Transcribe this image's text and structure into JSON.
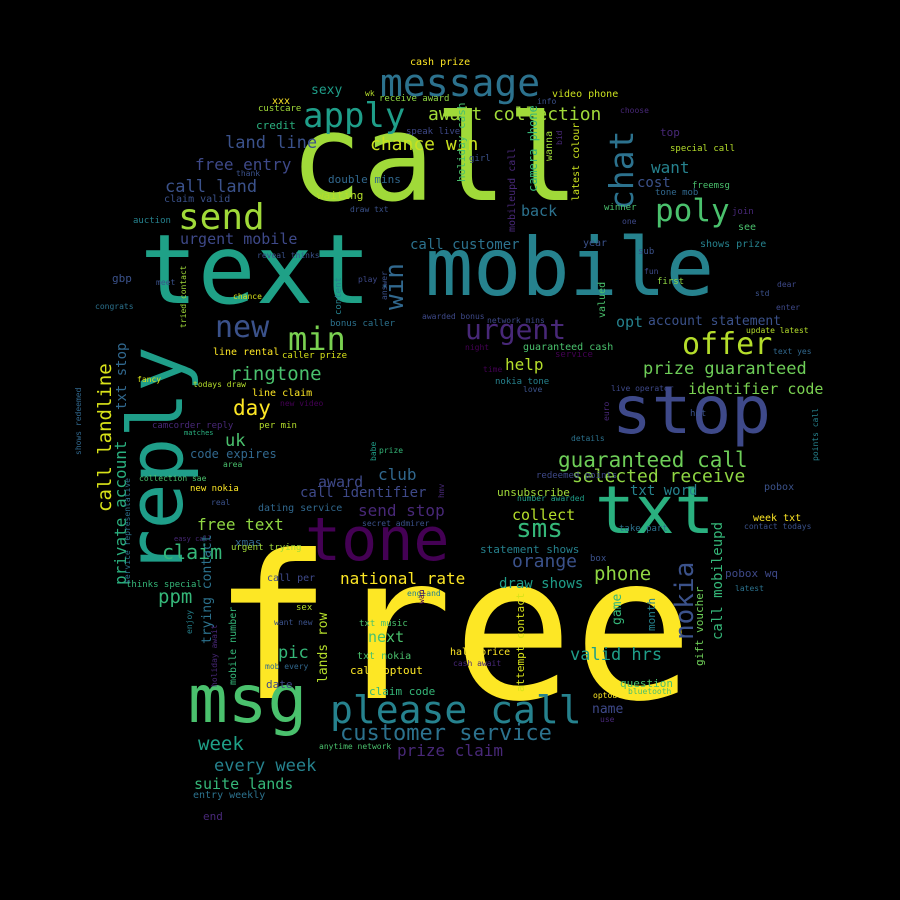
{
  "palette": {
    "background": "#000000",
    "yellow": "#fde725",
    "lime": "#b5de2b",
    "green": "#6ece58",
    "teal_green": "#35b779",
    "teal": "#1f9e89",
    "cyan_blue": "#26828e",
    "blue": "#31688e",
    "indigo": "#3e4989",
    "purple": "#482878",
    "dark_purple": "#440154"
  },
  "words": [
    {
      "text": "free",
      "color": "#fde725"
    },
    {
      "text": "call",
      "color": "#a0da39"
    },
    {
      "text": "text",
      "color": "#1fa187"
    },
    {
      "text": "mobile",
      "color": "#26828e"
    },
    {
      "text": "reply",
      "color": "#1f9e89"
    },
    {
      "text": "stop",
      "color": "#3e4989"
    },
    {
      "text": "txt",
      "color": "#2ab07f"
    },
    {
      "text": "tone",
      "color": "#440154"
    },
    {
      "text": "msg",
      "color": "#4ac16d"
    },
    {
      "text": "please call",
      "color": "#26828e"
    },
    {
      "text": "message",
      "color": "#2c728e"
    },
    {
      "text": "apply",
      "color": "#1f9e89"
    },
    {
      "text": "send",
      "color": "#a0da39"
    },
    {
      "text": "chat",
      "color": "#2c728e"
    },
    {
      "text": "poly",
      "color": "#4ac16d"
    },
    {
      "text": "new",
      "color": "#3b528b"
    },
    {
      "text": "min",
      "color": "#7ad151"
    },
    {
      "text": "win",
      "color": "#31688e"
    },
    {
      "text": "urgent",
      "color": "#482878"
    },
    {
      "text": "offer",
      "color": "#b5de2b"
    },
    {
      "text": "customer service",
      "color": "#2c728e"
    },
    {
      "text": "await collection",
      "color": "#a0da39"
    },
    {
      "text": "chance win",
      "color": "#cae11f"
    },
    {
      "text": "land line",
      "color": "#3b528b"
    },
    {
      "text": "free entry",
      "color": "#3e4989"
    },
    {
      "text": "call land",
      "color": "#3b528b"
    },
    {
      "text": "urgent mobile",
      "color": "#3e4989"
    },
    {
      "text": "ringtone",
      "color": "#4ac16d"
    },
    {
      "text": "day",
      "color": "#fde725"
    },
    {
      "text": "call landline",
      "color": "#d8e219"
    },
    {
      "text": "private account",
      "color": "#2ab07f"
    },
    {
      "text": "txt stop",
      "color": "#31688e"
    },
    {
      "text": "uk",
      "color": "#4ac16d"
    },
    {
      "text": "code expires",
      "color": "#31688e"
    },
    {
      "text": "guaranteed call",
      "color": "#6ece58"
    },
    {
      "text": "selected receive",
      "color": "#90d743"
    },
    {
      "text": "txt word",
      "color": "#26828e"
    },
    {
      "text": "prize guaranteed",
      "color": "#6ece58"
    },
    {
      "text": "identifier code",
      "color": "#7ad151"
    },
    {
      "text": "account statement",
      "color": "#3b528b"
    },
    {
      "text": "opt",
      "color": "#26828e"
    },
    {
      "text": "help",
      "color": "#b5de2b"
    },
    {
      "text": "call customer",
      "color": "#2c728e"
    },
    {
      "text": "award",
      "color": "#3e4989"
    },
    {
      "text": "club",
      "color": "#31688e"
    },
    {
      "text": "call identifier",
      "color": "#3e4989"
    },
    {
      "text": "send stop",
      "color": "#482878"
    },
    {
      "text": "sms",
      "color": "#35b779"
    },
    {
      "text": "collect",
      "color": "#b5de2b"
    },
    {
      "text": "orange",
      "color": "#3b528b"
    },
    {
      "text": "phone",
      "color": "#90d743"
    },
    {
      "text": "nokia",
      "color": "#3b528b"
    },
    {
      "text": "claim",
      "color": "#35b779"
    },
    {
      "text": "free text",
      "color": "#90d743"
    },
    {
      "text": "ppm",
      "color": "#35b779"
    },
    {
      "text": "national rate",
      "color": "#fde725"
    },
    {
      "text": "draw shows",
      "color": "#1f9e89"
    },
    {
      "text": "valid hrs",
      "color": "#1f9e89"
    },
    {
      "text": "pic",
      "color": "#35b779"
    },
    {
      "text": "next",
      "color": "#4ac16d"
    },
    {
      "text": "week",
      "color": "#1fa187"
    },
    {
      "text": "every week",
      "color": "#26828e"
    },
    {
      "text": "prize claim",
      "color": "#482878"
    },
    {
      "text": "suite lands",
      "color": "#35b779"
    },
    {
      "text": "entry weekly",
      "color": "#2c728e"
    },
    {
      "text": "end",
      "color": "#482878"
    },
    {
      "text": "want",
      "color": "#26828e"
    },
    {
      "text": "cost",
      "color": "#3b528b"
    },
    {
      "text": "back",
      "color": "#2c728e"
    },
    {
      "text": "sexy",
      "color": "#1f9e89"
    },
    {
      "text": "credit",
      "color": "#2ab07f"
    },
    {
      "text": "cash prize",
      "color": "#fde725"
    },
    {
      "text": "xxx",
      "color": "#fde725"
    },
    {
      "text": "video phone",
      "color": "#cae11f"
    },
    {
      "text": "receive award",
      "color": "#90d743"
    },
    {
      "text": "top",
      "color": "#482878"
    },
    {
      "text": "special call",
      "color": "#b5de2b"
    },
    {
      "text": "freemsg",
      "color": "#4ac16d"
    },
    {
      "text": "double mins",
      "color": "#31688e"
    },
    {
      "text": "waiting",
      "color": "#b5de2b"
    },
    {
      "text": "claim valid",
      "color": "#3b528b"
    },
    {
      "text": "auction",
      "color": "#26828e"
    },
    {
      "text": "year",
      "color": "#3b528b"
    },
    {
      "text": "shows prize",
      "color": "#26828e"
    },
    {
      "text": "see",
      "color": "#4ac16d"
    },
    {
      "text": "join",
      "color": "#482878"
    },
    {
      "text": "winner",
      "color": "#4ac16d"
    },
    {
      "text": "gbp",
      "color": "#3b528b"
    },
    {
      "text": "dear",
      "color": "#3e4989"
    },
    {
      "text": "std",
      "color": "#3b528b"
    },
    {
      "text": "enter",
      "color": "#3e4989"
    },
    {
      "text": "first",
      "color": "#90d743"
    },
    {
      "text": "fun",
      "color": "#3e4989"
    },
    {
      "text": "sub",
      "color": "#3b528b"
    },
    {
      "text": "bonus caller",
      "color": "#2c728e"
    },
    {
      "text": "line rental",
      "color": "#fde725"
    },
    {
      "text": "caller prize",
      "color": "#d8e219"
    },
    {
      "text": "guaranteed cash",
      "color": "#4ac16d"
    },
    {
      "text": "service",
      "color": "#440154"
    },
    {
      "text": "nokia tone",
      "color": "#26828e"
    },
    {
      "text": "love",
      "color": "#3b528b"
    },
    {
      "text": "live operator",
      "color": "#3e4989"
    },
    {
      "text": "hot",
      "color": "#3b528b"
    },
    {
      "text": "text yes",
      "color": "#31688e"
    },
    {
      "text": "update latest",
      "color": "#b5de2b"
    },
    {
      "text": "line claim",
      "color": "#fde725"
    },
    {
      "text": "per min",
      "color": "#b5de2b"
    },
    {
      "text": "todays draw",
      "color": "#b5de2b"
    },
    {
      "text": "fancy",
      "color": "#d8e219"
    },
    {
      "text": "new video",
      "color": "#440154"
    },
    {
      "text": "camcorder reply",
      "color": "#482878"
    },
    {
      "text": "matches",
      "color": "#2ab07f"
    },
    {
      "text": "area",
      "color": "#4ac16d"
    },
    {
      "text": "collection sae",
      "color": "#4ac16d"
    },
    {
      "text": "new nokia",
      "color": "#fde725"
    },
    {
      "text": "real",
      "color": "#3b528b"
    },
    {
      "text": "dating service",
      "color": "#31688e"
    },
    {
      "text": "secret admirer",
      "color": "#3b528b"
    },
    {
      "text": "xmas",
      "color": "#31688e"
    },
    {
      "text": "urgent trying",
      "color": "#a0da39"
    },
    {
      "text": "easy call",
      "color": "#482878"
    },
    {
      "text": "thinks special",
      "color": "#35b779"
    },
    {
      "text": "call per",
      "color": "#3e4989"
    },
    {
      "text": "sex",
      "color": "#b5de2b"
    },
    {
      "text": "want new",
      "color": "#3b528b"
    },
    {
      "text": "txt music",
      "color": "#4ac16d"
    },
    {
      "text": "england",
      "color": "#26828e"
    },
    {
      "text": "half price",
      "color": "#fde725"
    },
    {
      "text": "txt nokia",
      "color": "#4ac16d"
    },
    {
      "text": "call optout",
      "color": "#fde725"
    },
    {
      "text": "cash await",
      "color": "#482878"
    },
    {
      "text": "claim code",
      "color": "#35b779"
    },
    {
      "text": "mob every",
      "color": "#31688e"
    },
    {
      "text": "date",
      "color": "#3e4989"
    },
    {
      "text": "anytime network",
      "color": "#4ac16d"
    },
    {
      "text": "statement shows",
      "color": "#26828e"
    },
    {
      "text": "box",
      "color": "#3b528b"
    },
    {
      "text": "take part",
      "color": "#2c728e"
    },
    {
      "text": "latest",
      "color": "#2c728e"
    },
    {
      "text": "pobox wq",
      "color": "#3e4989"
    },
    {
      "text": "week txt",
      "color": "#fde725"
    },
    {
      "text": "contact todays",
      "color": "#3b528b"
    },
    {
      "text": "pobox",
      "color": "#3b528b"
    },
    {
      "text": "redeemed points",
      "color": "#3e4989"
    },
    {
      "text": "number awarded",
      "color": "#1f9e89"
    },
    {
      "text": "unsubscribe",
      "color": "#a0da39"
    },
    {
      "text": "details",
      "color": "#2c728e"
    },
    {
      "text": "question",
      "color": "#4ac16d"
    },
    {
      "text": "bluetooth",
      "color": "#4ac16d"
    },
    {
      "text": "optout",
      "color": "#fde725"
    },
    {
      "text": "name",
      "color": "#3e4989"
    },
    {
      "text": "use",
      "color": "#482878"
    },
    {
      "text": "congrats",
      "color": "#2c728e"
    },
    {
      "text": "chance",
      "color": "#d8e219"
    },
    {
      "text": "thank",
      "color": "#3b528b"
    },
    {
      "text": "custcare",
      "color": "#a0da39"
    },
    {
      "text": "wk",
      "color": "#b5de2b"
    },
    {
      "text": "info",
      "color": "#3b528b"
    },
    {
      "text": "speak live",
      "color": "#3e4989"
    },
    {
      "text": "girl",
      "color": "#3b528b"
    },
    {
      "text": "choose",
      "color": "#482878"
    },
    {
      "text": "tone mob",
      "color": "#31688e"
    },
    {
      "text": "one",
      "color": "#3e4989"
    },
    {
      "text": "play",
      "color": "#3e4989"
    },
    {
      "text": "draw txt",
      "color": "#3b528b"
    },
    {
      "text": "awarded bonus",
      "color": "#3e4989"
    },
    {
      "text": "network mins",
      "color": "#3e4989"
    },
    {
      "text": "night",
      "color": "#440154"
    },
    {
      "text": "time",
      "color": "#440154"
    },
    {
      "text": "prize",
      "color": "#35b779"
    },
    {
      "text": "tried contact",
      "color": "#a0da39"
    },
    {
      "text": "content",
      "color": "#26828e"
    },
    {
      "text": "reveal thinks",
      "color": "#3b528b"
    },
    {
      "text": "meet",
      "color": "#3b528b"
    },
    {
      "text": "shows redeemed",
      "color": "#31688e"
    },
    {
      "text": "trying contact",
      "color": "#2c728e"
    },
    {
      "text": "mobile number",
      "color": "#35b779"
    },
    {
      "text": "holiday await",
      "color": "#482878"
    },
    {
      "text": "enjoy",
      "color": "#26828e"
    },
    {
      "text": "service representative",
      "color": "#2c728e"
    },
    {
      "text": "lands row",
      "color": "#b5de2b"
    },
    {
      "text": "month",
      "color": "#26828e"
    },
    {
      "text": "game",
      "color": "#35b779"
    },
    {
      "text": "gift voucher",
      "color": "#6ece58"
    },
    {
      "text": "call mobileupd",
      "color": "#35b779"
    },
    {
      "text": "attempt contact",
      "color": "#d8e219"
    },
    {
      "text": "valued",
      "color": "#4ac16d"
    },
    {
      "text": "answer",
      "color": "#3b528b"
    },
    {
      "text": "holiday cash",
      "color": "#4ac16d"
    },
    {
      "text": "mobileupd call",
      "color": "#482878"
    },
    {
      "text": "camera phone",
      "color": "#35b779"
    },
    {
      "text": "wanna",
      "color": "#a0da39"
    },
    {
      "text": "bid",
      "color": "#482878"
    },
    {
      "text": "latest colour",
      "color": "#cae11f"
    },
    {
      "text": "euro",
      "color": "#482878"
    },
    {
      "text": "points call",
      "color": "#26828e"
    },
    {
      "text": "babe",
      "color": "#1f9e89"
    },
    {
      "text": "hmv",
      "color": "#482878"
    },
    {
      "text": "wap",
      "color": "#440154"
    }
  ]
}
